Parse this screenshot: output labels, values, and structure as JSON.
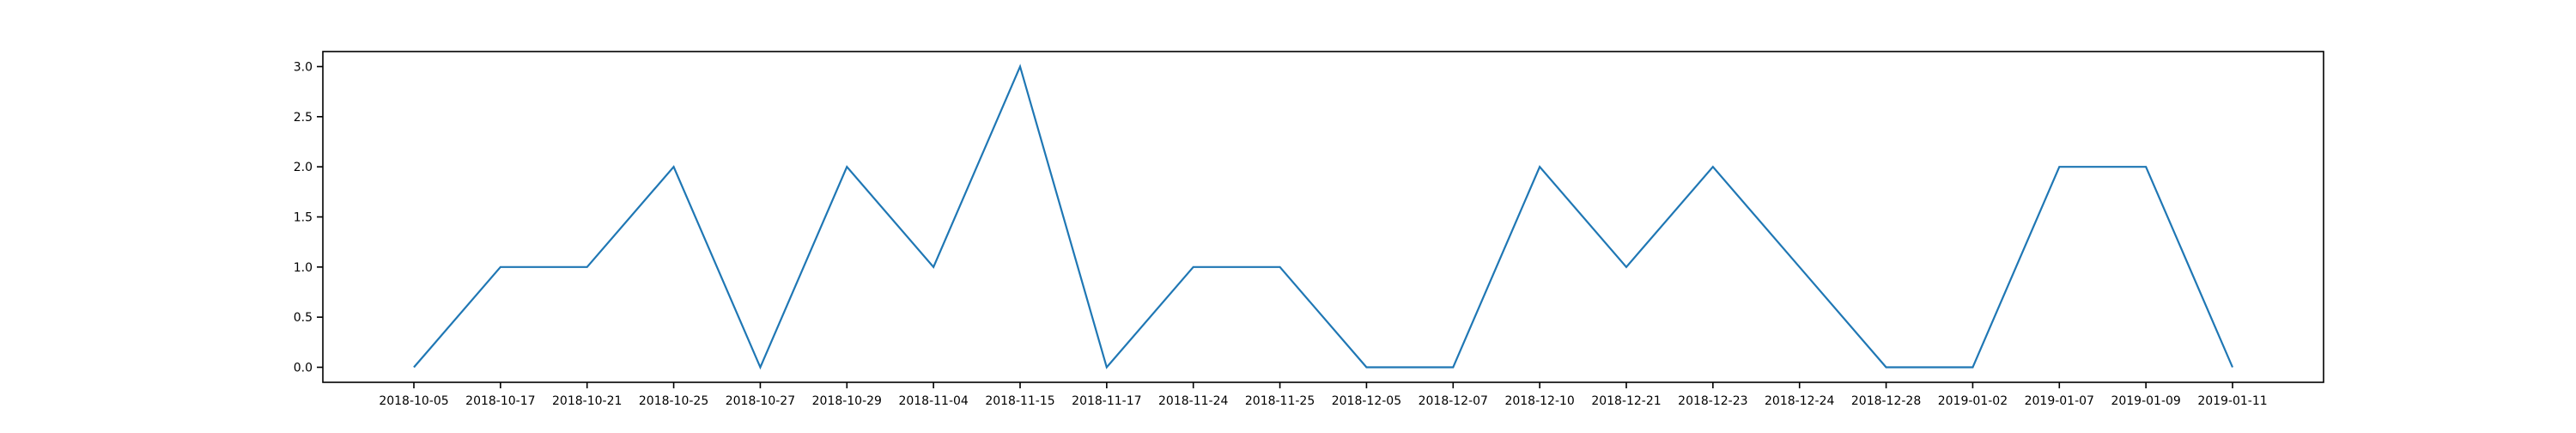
{
  "chart_data": {
    "type": "line",
    "title": "",
    "xlabel": "",
    "ylabel": "",
    "categories": [
      "2018-10-05",
      "2018-10-17",
      "2018-10-21",
      "2018-10-25",
      "2018-10-27",
      "2018-10-29",
      "2018-11-04",
      "2018-11-15",
      "2018-11-17",
      "2018-11-24",
      "2018-11-25",
      "2018-12-05",
      "2018-12-07",
      "2018-12-10",
      "2018-12-21",
      "2018-12-23",
      "2018-12-24",
      "2018-12-28",
      "2019-01-02",
      "2019-01-07",
      "2019-01-09",
      "2019-01-11"
    ],
    "series": [
      {
        "values": [
          0,
          1,
          1,
          2,
          0,
          2,
          1,
          3,
          0,
          1,
          1,
          0,
          0,
          2,
          1,
          2,
          1,
          0,
          0,
          2,
          2,
          0
        ],
        "color": "#1f77b4"
      }
    ],
    "ylim": [
      -0.15,
      3.15
    ],
    "yticks": [
      0.0,
      0.5,
      1.0,
      1.5,
      2.0,
      2.5,
      3.0
    ],
    "ytick_labels": [
      "0.0",
      "0.5",
      "1.0",
      "1.5",
      "2.0",
      "2.5",
      "3.0"
    ],
    "grid": false,
    "legend": "none"
  }
}
